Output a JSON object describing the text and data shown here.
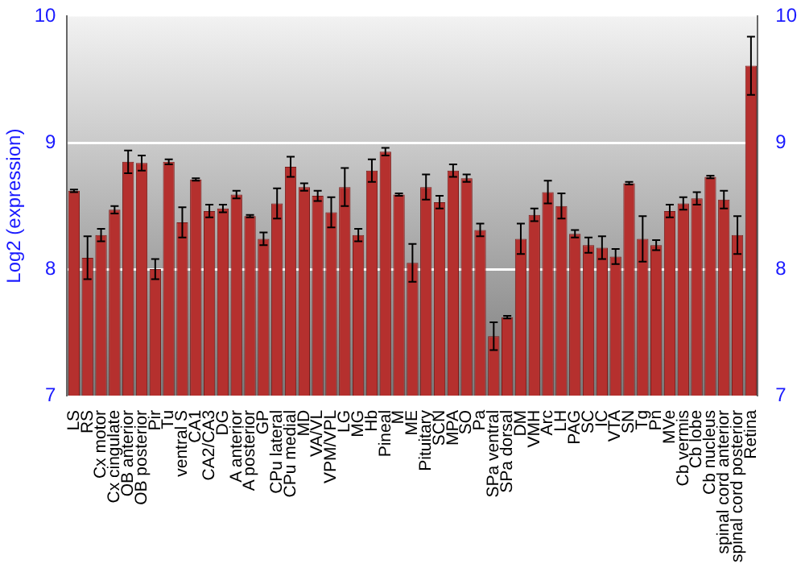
{
  "chart_data": {
    "type": "bar",
    "ylabel": "Log2 (expression)",
    "categories": [
      "LS",
      "RS",
      "Cx motor",
      "Cx cingulate",
      "OB anterior",
      "OB posterior",
      "Pir",
      "Tu",
      "ventral S",
      "CA1",
      "CA2/CA3",
      "DG",
      "A anterior",
      "A posterior",
      "GP",
      "CPu lateral",
      "CPu medial",
      "MD",
      "VA/VL",
      "VPM/VPL",
      "LG",
      "MG",
      "Hb",
      "Pineal",
      "M",
      "ME",
      "Pituitary",
      "SCN",
      "MPA",
      "SO",
      "Pa",
      "SPa ventral",
      "SPa dorsal",
      "DM",
      "VMH",
      "Arc",
      "LH",
      "PAG",
      "SC",
      "IC",
      "VTA",
      "SN",
      "Tg",
      "Pn",
      "MVe",
      "Cb vermis",
      "Cb lobe",
      "Cb nucleus",
      "spinal cord anterior",
      "spinal cord posterior",
      "Retina"
    ],
    "values": [
      8.62,
      8.09,
      8.27,
      8.47,
      8.85,
      8.84,
      8.0,
      8.85,
      8.37,
      8.71,
      8.46,
      8.48,
      8.59,
      8.42,
      8.24,
      8.52,
      8.81,
      8.65,
      8.58,
      8.45,
      8.65,
      8.27,
      8.78,
      8.93,
      8.59,
      8.05,
      8.65,
      8.53,
      8.78,
      8.72,
      8.31,
      7.47,
      7.62,
      8.24,
      8.43,
      8.61,
      8.5,
      8.28,
      8.19,
      8.17,
      8.1,
      8.68,
      8.24,
      8.19,
      8.46,
      8.52,
      8.56,
      8.73,
      8.55,
      8.27,
      9.61
    ],
    "errors": [
      0.01,
      0.17,
      0.05,
      0.03,
      0.09,
      0.06,
      0.08,
      0.02,
      0.12,
      0.01,
      0.05,
      0.03,
      0.03,
      0.01,
      0.05,
      0.12,
      0.08,
      0.03,
      0.04,
      0.12,
      0.15,
      0.05,
      0.09,
      0.03,
      0.01,
      0.15,
      0.1,
      0.05,
      0.05,
      0.03,
      0.05,
      0.11,
      0.01,
      0.12,
      0.05,
      0.09,
      0.1,
      0.03,
      0.06,
      0.09,
      0.06,
      0.01,
      0.18,
      0.04,
      0.05,
      0.05,
      0.05,
      0.01,
      0.07,
      0.15,
      0.23
    ],
    "color": "#b5302e",
    "ylim": [
      7,
      10
    ],
    "yticks": [
      7,
      8,
      9,
      10
    ],
    "y2lim": [
      7,
      10
    ],
    "y2ticks": [
      7,
      8,
      9,
      10
    ],
    "grid": "y",
    "legend": false
  }
}
